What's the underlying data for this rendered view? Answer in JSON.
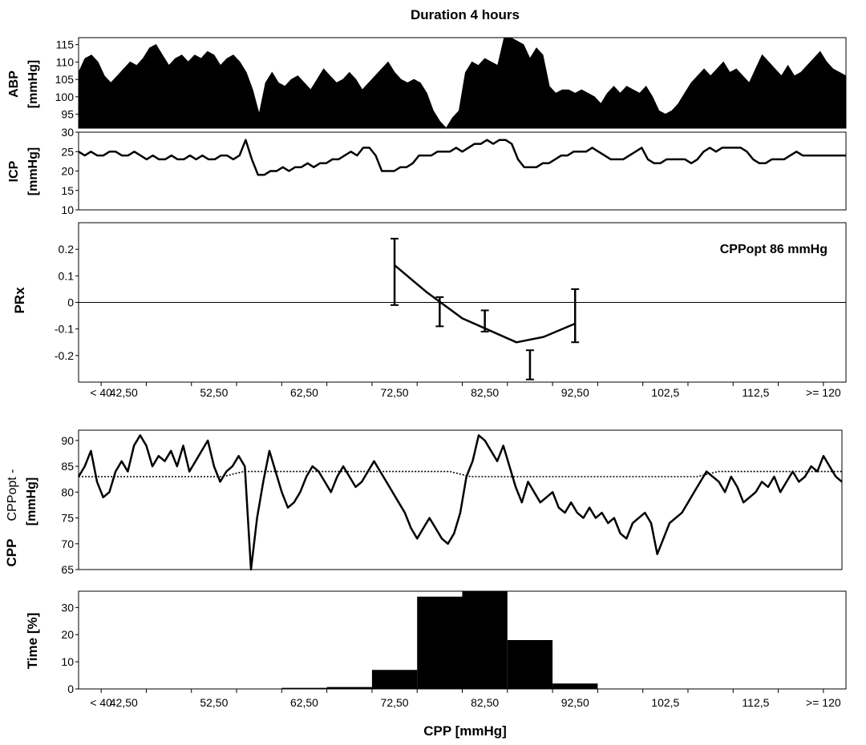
{
  "figure": {
    "title": "Duration 4 hours",
    "colors": {
      "ink": "#000000",
      "background": "#ffffff",
      "grid": "#000000"
    }
  },
  "chart_data": [
    {
      "id": "abp",
      "type": "area",
      "ylabel": "ABP",
      "yunit": "[mmHg]",
      "ylim": [
        91,
        117
      ],
      "yticks": [
        95,
        100,
        105,
        110,
        115
      ],
      "xlabel": "",
      "x_unit": "hours",
      "xlim": [
        0,
        4
      ],
      "series": [
        {
          "values": [
            107,
            111,
            112,
            110,
            106,
            104,
            106,
            108,
            110,
            109,
            111,
            114,
            115,
            112,
            109,
            111,
            112,
            110,
            112,
            111,
            113,
            112,
            109,
            111,
            112,
            110,
            107,
            102,
            95,
            104,
            107,
            104,
            103,
            105,
            106,
            104,
            102,
            105,
            108,
            106,
            104,
            105,
            107,
            105,
            102,
            104,
            106,
            108,
            110,
            107,
            105,
            104,
            105,
            104,
            101,
            96,
            93,
            91,
            94,
            96,
            107,
            110,
            109,
            111,
            110,
            109,
            117,
            117,
            116,
            115,
            111,
            114,
            112,
            103,
            101,
            102,
            102,
            101,
            102,
            101,
            100,
            98,
            101,
            103,
            101,
            103,
            102,
            101,
            103,
            100,
            96,
            95,
            96,
            98,
            101,
            104,
            106,
            108,
            106,
            108,
            110,
            107,
            108,
            106,
            104,
            108,
            112,
            110,
            108,
            106,
            109,
            106,
            107,
            109,
            111,
            113,
            110,
            108,
            107,
            106
          ]
        }
      ]
    },
    {
      "id": "icp",
      "type": "line",
      "ylabel": "ICP",
      "yunit": "[mmHg]",
      "ylim": [
        10,
        30
      ],
      "yticks": [
        10,
        15,
        20,
        25,
        30
      ],
      "xlabel": "",
      "x_unit": "hours",
      "xlim": [
        0,
        4
      ],
      "series": [
        {
          "values": [
            25,
            24,
            25,
            24,
            24,
            25,
            25,
            24,
            24,
            25,
            24,
            23,
            24,
            23,
            23,
            24,
            23,
            23,
            24,
            23,
            24,
            23,
            23,
            24,
            24,
            23,
            24,
            28,
            23,
            19,
            19,
            20,
            20,
            21,
            20,
            21,
            21,
            22,
            21,
            22,
            22,
            23,
            23,
            24,
            25,
            24,
            26,
            26,
            24,
            20,
            20,
            20,
            21,
            21,
            22,
            24,
            24,
            24,
            25,
            25,
            25,
            26,
            25,
            26,
            27,
            27,
            28,
            27,
            28,
            28,
            27,
            23,
            21,
            21,
            21,
            22,
            22,
            23,
            24,
            24,
            25,
            25,
            25,
            26,
            25,
            24,
            23,
            23,
            23,
            24,
            25,
            26,
            23,
            22,
            22,
            23,
            23,
            23,
            23,
            22,
            23,
            25,
            26,
            25,
            26,
            26,
            26,
            26,
            25,
            23,
            22,
            22,
            23,
            23,
            23,
            24,
            25,
            24,
            24,
            24,
            24,
            24,
            24,
            24,
            24
          ]
        }
      ]
    },
    {
      "id": "prx",
      "type": "scatter",
      "ylabel": "PRx",
      "ylim": [
        -0.3,
        0.3
      ],
      "yticks": [
        -0.2,
        -0.1,
        0,
        0.1,
        0.2
      ],
      "yticklabels": [
        "-0.2",
        "-0.1",
        "0",
        "0.1",
        "0.2"
      ],
      "xlabel": "",
      "categories": [
        "< 40",
        "42,50",
        "52,50",
        "62,50",
        "72,50",
        "82,50",
        "92,50",
        "102,5",
        "112,5",
        ">= 120"
      ],
      "annotation": "CPPopt 86 mmHg",
      "series": [
        {
          "points": [
            {
              "x": 72.5,
              "y": 0.12,
              "low": -0.01,
              "high": 0.24
            },
            {
              "x": 77.5,
              "y": -0.03,
              "low": -0.09,
              "high": 0.02
            },
            {
              "x": 82.5,
              "y": -0.07,
              "low": -0.11,
              "high": -0.03
            },
            {
              "x": 87.5,
              "y": -0.23,
              "low": -0.29,
              "high": -0.18
            },
            {
              "x": 92.5,
              "y": -0.05,
              "low": -0.15,
              "high": 0.05
            }
          ]
        }
      ],
      "fit_curve": [
        {
          "x": 72.5,
          "y": 0.14
        },
        {
          "x": 76.0,
          "y": 0.04
        },
        {
          "x": 80.0,
          "y": -0.06
        },
        {
          "x": 84.0,
          "y": -0.12
        },
        {
          "x": 86.0,
          "y": -0.15
        },
        {
          "x": 89.0,
          "y": -0.13
        },
        {
          "x": 92.5,
          "y": -0.08
        }
      ]
    },
    {
      "id": "cpp",
      "type": "line",
      "ylabel": "CPP",
      "ylabel2": "CPPopt -",
      "yunit": "[mmHg]",
      "ylim": [
        65,
        92
      ],
      "yticks": [
        65,
        70,
        75,
        80,
        85,
        90
      ],
      "xlabel": "",
      "x_unit": "hours",
      "xlim": [
        0,
        4
      ],
      "series": [
        {
          "style": "solid",
          "values": [
            83,
            85,
            88,
            82,
            79,
            80,
            84,
            86,
            84,
            89,
            91,
            89,
            85,
            87,
            86,
            88,
            85,
            89,
            84,
            86,
            88,
            90,
            85,
            82,
            84,
            85,
            87,
            85,
            65,
            75,
            82,
            88,
            84,
            80,
            77,
            78,
            80,
            83,
            85,
            84,
            82,
            80,
            83,
            85,
            83,
            81,
            82,
            84,
            86,
            84,
            82,
            80,
            78,
            76,
            73,
            71,
            73,
            75,
            73,
            71,
            70,
            72,
            76,
            83,
            86,
            91,
            90,
            88,
            86,
            89,
            85,
            81,
            78,
            82,
            80,
            78,
            79,
            80,
            77,
            76,
            78,
            76,
            75,
            77,
            75,
            76,
            74,
            75,
            72,
            71,
            74,
            75,
            76,
            74,
            68,
            71,
            74,
            75,
            76,
            78,
            80,
            82,
            84,
            83,
            82,
            80,
            83,
            81,
            78,
            79,
            80,
            82,
            81,
            83,
            80,
            82,
            84,
            82,
            83,
            85,
            84,
            87,
            85,
            83,
            82
          ]
        },
        {
          "style": "dotted",
          "values": [
            83,
            83,
            83,
            83,
            83,
            83,
            83,
            83,
            84,
            84,
            84,
            84,
            84,
            84,
            84,
            84,
            84,
            84,
            84,
            83,
            83,
            83,
            83,
            83,
            83,
            83,
            83,
            83,
            83,
            83,
            83,
            84,
            84,
            84,
            84,
            84,
            84,
            84
          ]
        }
      ]
    },
    {
      "id": "time",
      "type": "bar",
      "ylabel": "Time [%]",
      "ylim": [
        0,
        36
      ],
      "yticks": [
        0,
        10,
        20,
        30
      ],
      "xlabel": "CPP [mmHg]",
      "categories": [
        "< 40",
        "42,50",
        "52,50",
        "62,50",
        "72,50",
        "82,50",
        "92,50",
        "102,5",
        "112,5",
        ">= 120"
      ],
      "bars": [
        {
          "x": 62.5,
          "value": 0.4
        },
        {
          "x": 67.5,
          "value": 0.7
        },
        {
          "x": 72.5,
          "value": 7
        },
        {
          "x": 77.5,
          "value": 34
        },
        {
          "x": 82.5,
          "value": 36
        },
        {
          "x": 87.5,
          "value": 18
        },
        {
          "x": 92.5,
          "value": 2
        }
      ]
    }
  ]
}
